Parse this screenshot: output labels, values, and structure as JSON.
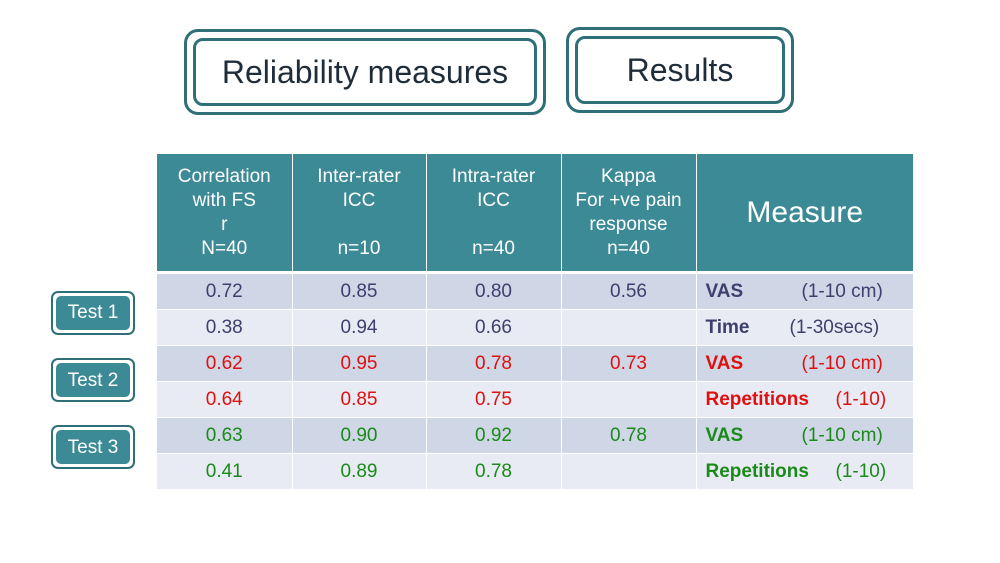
{
  "titles": {
    "reliability": "Reliability measures",
    "results": "Results"
  },
  "table": {
    "headers": [
      "Correlation\nwith FS\nr\nN=40",
      "Inter-rater\nICC\n\nn=10",
      "Intra-rater\nICC\n\nn=40",
      "Kappa\nFor +ve pain\nresponse\nn=40",
      "Measure"
    ],
    "rows": [
      {
        "cells": [
          "0.72",
          "0.85",
          "0.80",
          "0.56"
        ],
        "measure": "VAS",
        "range": "(1-10 cm)",
        "color": "#3f3f6e"
      },
      {
        "cells": [
          "0.38",
          "0.94",
          "0.66",
          ""
        ],
        "measure": "Time",
        "range": "(1-30secs)",
        "color": "#3f3f6e"
      },
      {
        "cells": [
          "0.62",
          "0.95",
          "0.78",
          "0.73"
        ],
        "measure": "VAS",
        "range": "(1-10 cm)",
        "color": "#e01010"
      },
      {
        "cells": [
          "0.64",
          "0.85",
          "0.75",
          ""
        ],
        "measure": "Repetitions",
        "range": "(1-10)",
        "color": "#e01010"
      },
      {
        "cells": [
          "0.63",
          "0.90",
          "0.92",
          "0.78"
        ],
        "measure": "VAS",
        "range": "(1-10 cm)",
        "color": "#1a8a1a"
      },
      {
        "cells": [
          "0.41",
          "0.89",
          "0.78",
          ""
        ],
        "measure": "Repetitions",
        "range": "(1-10)",
        "color": "#1a8a1a"
      }
    ]
  },
  "tests": [
    "Test 1",
    "Test 2",
    "Test 3"
  ],
  "colors": {
    "header_bg": "#3c8a95",
    "border": "#2e6f78",
    "row_odd": "#cfd6e6",
    "row_even": "#e8ebf3"
  }
}
